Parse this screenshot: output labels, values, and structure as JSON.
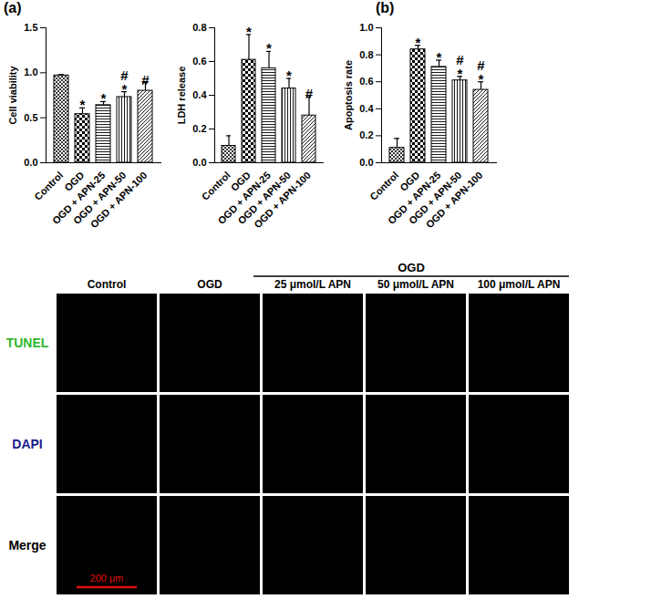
{
  "chart_data": [
    {
      "type": "bar",
      "panel_label": "(a)",
      "y_label": "Cell viability",
      "color": "#000000",
      "categories": [
        "Control",
        "OGD",
        "OGD + APN-25",
        "OGD + APN-50",
        "OGD + APN-100"
      ],
      "values": [
        0.97,
        0.54,
        0.64,
        0.73,
        0.8
      ],
      "errors": [
        0.01,
        0.07,
        0.04,
        0.06,
        0.09
      ],
      "significance": [
        [],
        [
          "*"
        ],
        [
          "*"
        ],
        [
          "#",
          "*"
        ],
        [
          "#"
        ]
      ],
      "ylim": [
        0,
        1.5
      ],
      "yticks": [
        {
          "value": 0,
          "label": "0.0"
        },
        {
          "value": 0.5,
          "label": "0.5"
        },
        {
          "value": 1,
          "label": "1.0"
        },
        {
          "value": 1.5,
          "label": "1.5"
        }
      ]
    },
    {
      "type": "bar",
      "y_label": "LDH release",
      "color": "#000000",
      "categories": [
        "Control",
        "OGD",
        "OGD + APN-25",
        "OGD + APN-50",
        "OGD + APN-100"
      ],
      "values": [
        0.1,
        0.61,
        0.56,
        0.44,
        0.28
      ],
      "errors": [
        0.06,
        0.15,
        0.1,
        0.06,
        0.11
      ],
      "significance": [
        [],
        [
          "*"
        ],
        [
          "*"
        ],
        [
          "*"
        ],
        [
          "#"
        ]
      ],
      "ylim": [
        0,
        0.8
      ],
      "yticks": [
        {
          "value": 0,
          "label": "0.0"
        },
        0.2,
        0.4,
        0.6,
        0.8
      ]
    },
    {
      "type": "bar",
      "panel_label": "(b)",
      "y_label": "Apoptosis rate",
      "color": "#000000",
      "categories": [
        "Control",
        "OGD",
        "OGD + APN-25",
        "OGD + APN-50",
        "OGD + APN-100"
      ],
      "values": [
        0.11,
        0.84,
        0.71,
        0.61,
        0.54
      ],
      "errors": [
        0.07,
        0.03,
        0.05,
        0.03,
        0.06
      ],
      "significance": [
        [],
        [
          "*"
        ],
        [
          "*"
        ],
        [
          "#",
          "*"
        ],
        [
          "#",
          "*"
        ]
      ],
      "ylim": [
        0,
        1
      ],
      "yticks": [
        {
          "value": 0,
          "label": "0.0"
        },
        0.2,
        0.4,
        0.6,
        0.8,
        {
          "value": 1,
          "label": "1.0"
        }
      ]
    }
  ],
  "image_panel": {
    "group_label": "OGD",
    "group_columns": [
      2,
      4
    ],
    "columns": [
      "Control",
      "OGD",
      "25 μmol/L APN",
      "50 μmol/L APN",
      "100 μmol/L APN"
    ],
    "rows": [
      {
        "label": "TUNEL",
        "color": "#2fb82f"
      },
      {
        "label": "DAPI",
        "color": "#1c1c8a"
      },
      {
        "label": "Merge",
        "color": "#000000"
      }
    ],
    "scale_bar": {
      "label": "200 μm",
      "color": "#e01010"
    }
  }
}
